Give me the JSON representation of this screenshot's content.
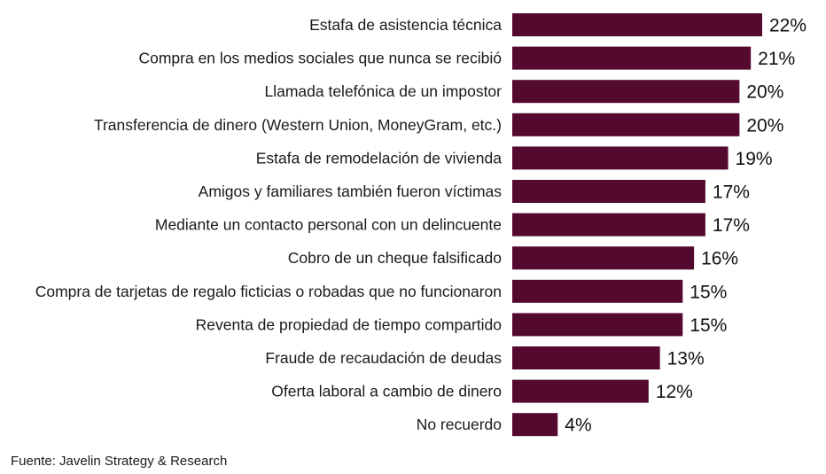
{
  "chart_data": {
    "type": "bar",
    "orientation": "horizontal",
    "categories": [
      "Estafa de asistencia técnica",
      "Compra en los medios sociales que nunca se recibió",
      "Llamada telefónica de un impostor",
      "Transferencia de dinero (Western Union, MoneyGram, etc.)",
      "Estafa de remodelación de vivienda",
      "Amigos y familiares también fueron víctimas",
      "Mediante un contacto personal con un delincuente",
      "Cobro de un cheque falsificado",
      "Compra de tarjetas de regalo ficticias o robadas que no funcionaron",
      "Reventa de propiedad de tiempo compartido",
      "Fraude de recaudación de deudas",
      "Oferta laboral a cambio de dinero",
      "No recuerdo"
    ],
    "values": [
      22,
      21,
      20,
      20,
      19,
      17,
      17,
      16,
      15,
      15,
      13,
      12,
      4
    ],
    "value_labels": [
      "22%",
      "21%",
      "20%",
      "20%",
      "19%",
      "17%",
      "17%",
      "16%",
      "15%",
      "15%",
      "13%",
      "12%",
      "4%"
    ],
    "unit": "%",
    "xlim": [
      0,
      22
    ],
    "grid": false,
    "legend": "none",
    "bar_color": "#54092f"
  },
  "source": "Fuente: Javelin Strategy & Research"
}
